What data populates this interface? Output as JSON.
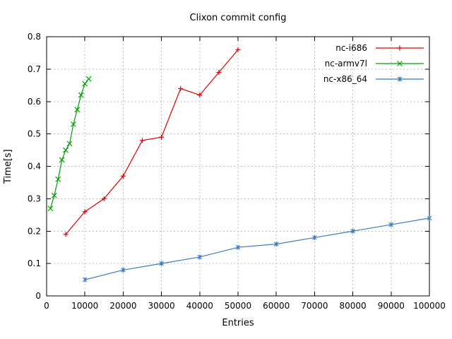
{
  "chart_data": {
    "type": "line",
    "title": "Clixon commit config",
    "xlabel": "Entries",
    "ylabel": "Time[s]",
    "xlim": [
      0,
      100000
    ],
    "ylim": [
      0,
      0.8
    ],
    "x_ticks": [
      0,
      10000,
      20000,
      30000,
      40000,
      50000,
      60000,
      70000,
      80000,
      90000,
      100000
    ],
    "y_ticks": [
      0,
      0.1,
      0.2,
      0.3,
      0.4,
      0.5,
      0.6,
      0.7,
      0.8
    ],
    "grid": true,
    "legend_position": "top-right-inside",
    "series": [
      {
        "name": "nc-i686",
        "color": "#e00000",
        "marker": "plus",
        "x": [
          5000,
          10000,
          15000,
          20000,
          25000,
          30000,
          35000,
          40000,
          45000,
          50000
        ],
        "y": [
          0.19,
          0.26,
          0.3,
          0.37,
          0.48,
          0.49,
          0.64,
          0.62,
          0.69,
          0.76
        ]
      },
      {
        "name": "nc-armv7l",
        "color": "#00a000",
        "marker": "cross",
        "x": [
          1000,
          2000,
          3000,
          4000,
          5000,
          6000,
          7000,
          8000,
          9000,
          10000,
          11000
        ],
        "y": [
          0.27,
          0.31,
          0.36,
          0.42,
          0.45,
          0.47,
          0.53,
          0.575,
          0.62,
          0.655,
          0.67
        ]
      },
      {
        "name": "nc-x86_64",
        "color": "#3a7abf",
        "marker": "star",
        "x": [
          10000,
          20000,
          30000,
          40000,
          50000,
          60000,
          70000,
          80000,
          90000,
          100000
        ],
        "y": [
          0.05,
          0.08,
          0.1,
          0.12,
          0.15,
          0.16,
          0.18,
          0.2,
          0.22,
          0.24
        ]
      }
    ]
  }
}
